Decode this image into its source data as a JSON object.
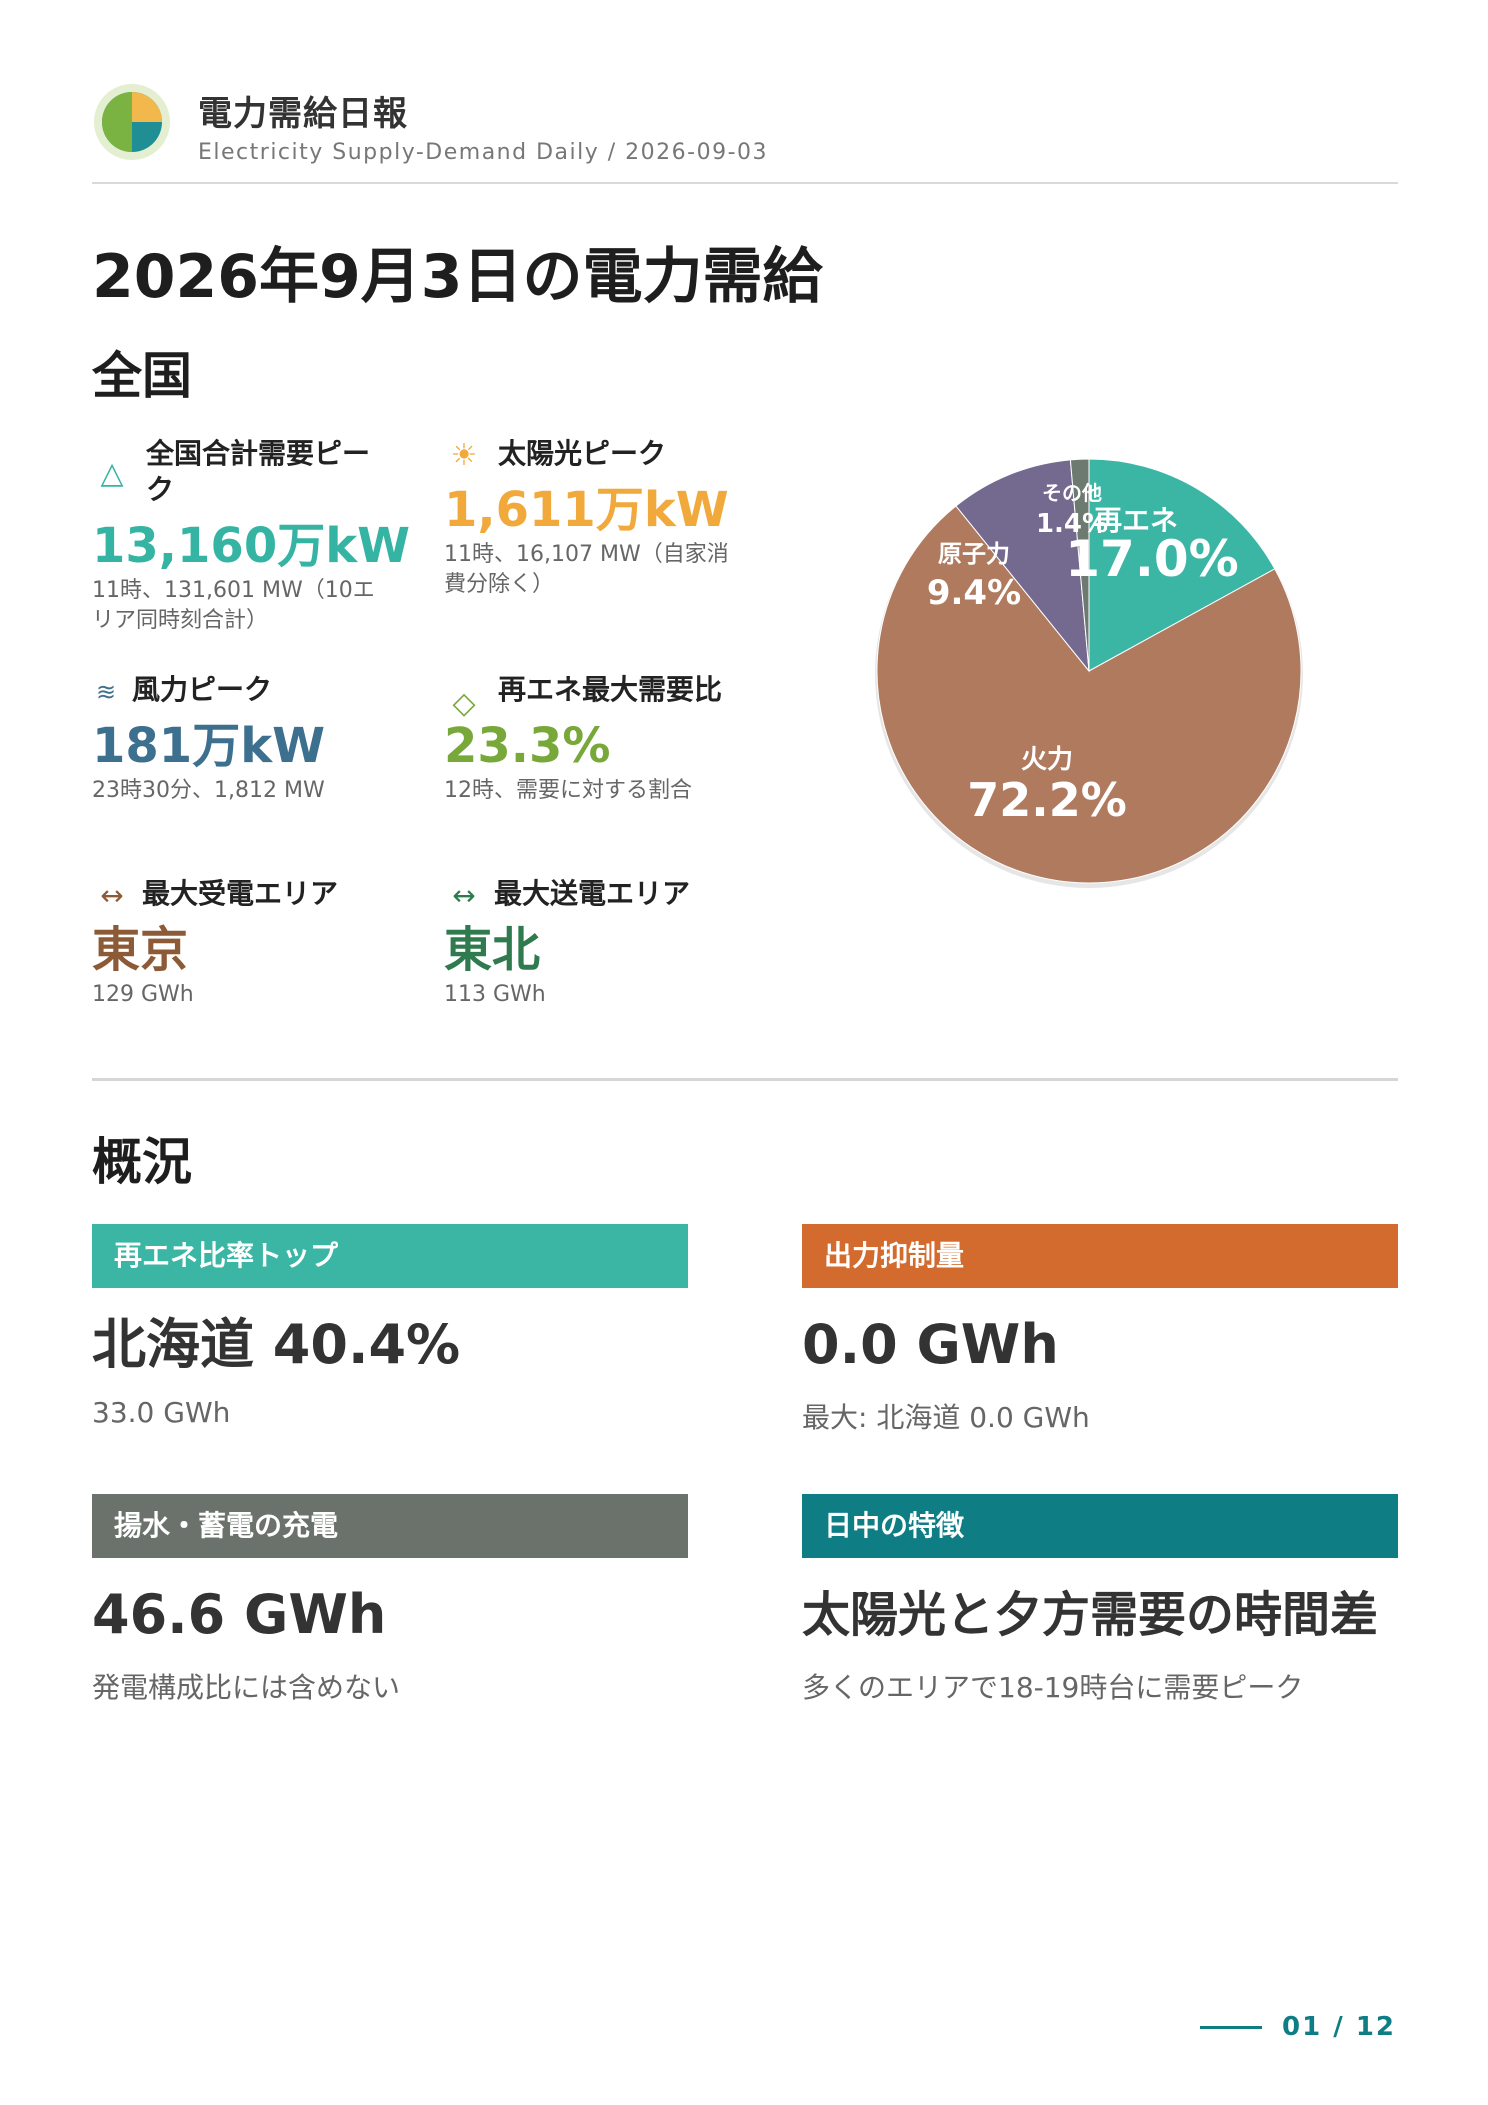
{
  "header": {
    "title": "電力需給日報",
    "subtitle": "Electricity Supply-Demand Daily / 2026-09-03"
  },
  "page_title": "2026年9月3日の電力需給",
  "national": {
    "heading": "全国",
    "metrics": [
      {
        "icon": "triangle-icon",
        "label": "全国合計需要ピーク",
        "value": "13,160万kW",
        "note": "11時、131,601 MW（10エリア同時刻合計）",
        "color": "#35b4a3"
      },
      {
        "icon": "sun-icon",
        "label": "太陽光ピーク",
        "value": "1,611万kW",
        "note": "11時、16,107 MW（自家消費分除く）",
        "color": "#f0a93a"
      },
      {
        "icon": "wind-icon",
        "label": "風力ピーク",
        "value": "181万kW",
        "note": "23時30分、1,812 MW",
        "color": "#3d6f8e"
      },
      {
        "icon": "diamond-icon",
        "label": "再エネ最大需要比",
        "value": "23.3%",
        "note": "12時、需要に対する割合",
        "color": "#78a83a"
      },
      {
        "icon": "arrows-icon",
        "label": "最大受電エリア",
        "value": "東京",
        "note": "129 GWh",
        "color": "#8c5a36"
      },
      {
        "icon": "arrows-icon",
        "label": "最大送電エリア",
        "value": "東北",
        "note": "113 GWh",
        "color": "#2f7a4e"
      }
    ]
  },
  "chart_data": {
    "type": "pie",
    "slices": [
      {
        "label": "再エネ",
        "value": 17.0,
        "display": "17.0%",
        "color": "#3bb5a4"
      },
      {
        "label": "火力",
        "value": 72.2,
        "display": "72.2%",
        "color": "#b07a5f"
      },
      {
        "label": "原子力",
        "value": 9.4,
        "display": "9.4%",
        "color": "#74698f"
      },
      {
        "label": "その他",
        "value": 1.4,
        "display": "1.4%",
        "color": "#6d7a6f"
      }
    ]
  },
  "overview": {
    "heading": "概況",
    "cards": [
      {
        "title": "再エネ比率トップ",
        "value": "北海道 40.4%",
        "note": "33.0 GWh",
        "color": "#3bb5a4"
      },
      {
        "title": "出力抑制量",
        "value": "0.0 GWh",
        "note": "最大: 北海道 0.0 GWh",
        "color": "#d36b2e"
      },
      {
        "title": "揚水・蓄電の充電",
        "value": "46.6 GWh",
        "note": "発電構成比には含めない",
        "color": "#6b726b"
      },
      {
        "title": "日中の特徴",
        "value": "太陽光と夕方需要の時間差",
        "note": "多くのエリアで18-19時台に需要ピーク",
        "color": "#0e7d84"
      }
    ]
  },
  "footer": {
    "page": "01 / 12"
  }
}
